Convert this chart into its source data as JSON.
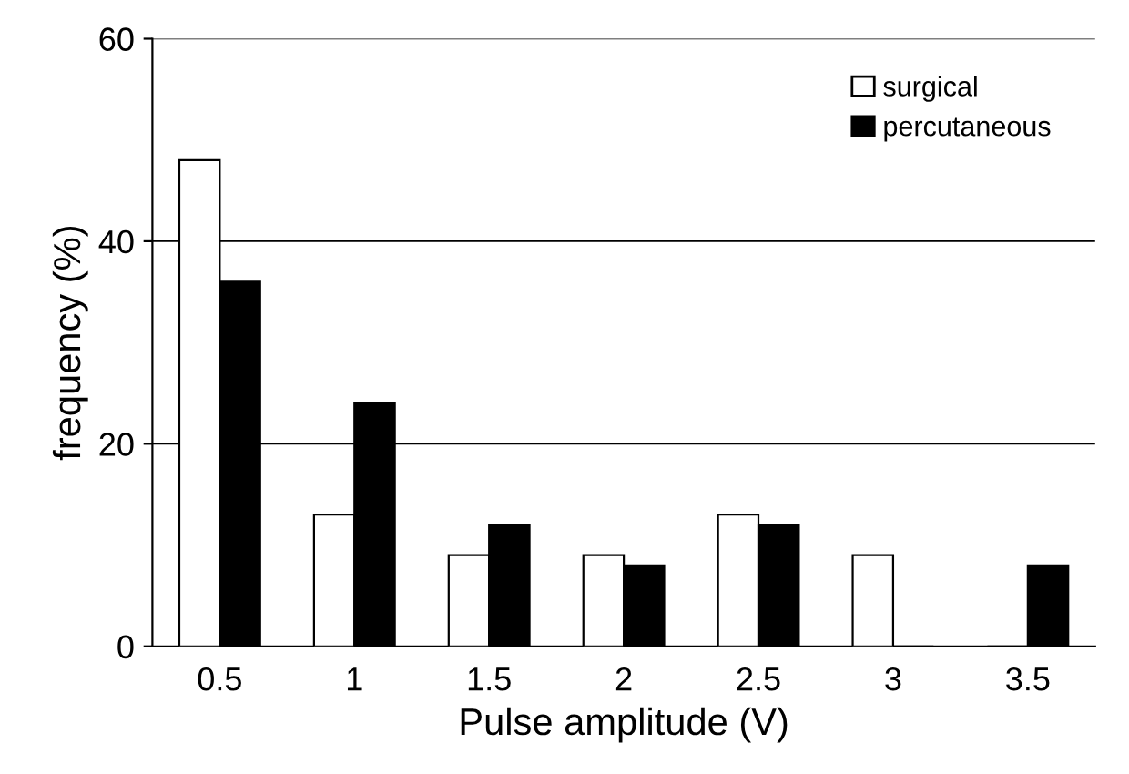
{
  "chart_data": {
    "type": "bar",
    "xlabel": "Pulse amplitude (V)",
    "ylabel": "frequency (%)",
    "categories": [
      "0.5",
      "1",
      "1.5",
      "2",
      "2.5",
      "3",
      "3.5"
    ],
    "series": [
      {
        "name": "surgical",
        "color": "#ffffff",
        "values": [
          48,
          13,
          9,
          9,
          13,
          9,
          0
        ]
      },
      {
        "name": "percutaneous",
        "color": "#000000",
        "values": [
          36,
          24,
          12,
          8,
          12,
          0,
          8
        ]
      }
    ],
    "ylim": [
      0,
      60
    ],
    "yticks": [
      0,
      20,
      40,
      60
    ],
    "grid": "y",
    "legend": "top right"
  }
}
